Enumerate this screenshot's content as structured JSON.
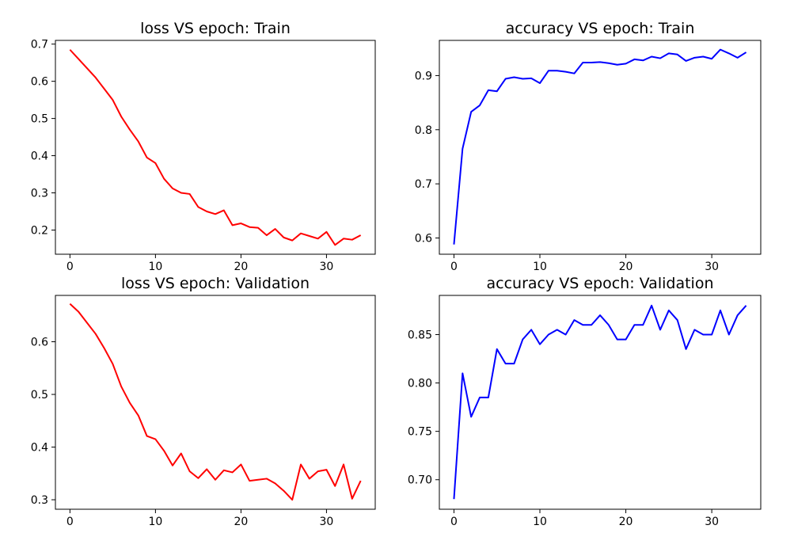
{
  "chart_data": [
    {
      "type": "line",
      "title": "loss VS epoch: Train",
      "xlabel": "",
      "ylabel": "",
      "xlim": [
        -1.7,
        35.7
      ],
      "ylim": [
        0.135,
        0.71
      ],
      "xticks": [
        0,
        10,
        20,
        30
      ],
      "yticks": [
        0.2,
        0.3,
        0.4,
        0.5,
        0.6,
        0.7
      ],
      "tick_decimals": 1,
      "grid": false,
      "series": [
        {
          "color": "#ff0000",
          "x": [
            0,
            1,
            2,
            3,
            4,
            5,
            6,
            7,
            8,
            9,
            10,
            11,
            12,
            13,
            14,
            15,
            16,
            17,
            18,
            19,
            20,
            21,
            22,
            23,
            24,
            25,
            26,
            27,
            28,
            29,
            30,
            31,
            32,
            33,
            34
          ],
          "values": [
            0.685,
            0.66,
            0.635,
            0.61,
            0.58,
            0.55,
            0.505,
            0.47,
            0.438,
            0.395,
            0.38,
            0.338,
            0.312,
            0.3,
            0.297,
            0.262,
            0.25,
            0.243,
            0.253,
            0.213,
            0.218,
            0.208,
            0.206,
            0.186,
            0.203,
            0.18,
            0.172,
            0.191,
            0.184,
            0.177,
            0.195,
            0.16,
            0.177,
            0.174,
            0.186
          ]
        }
      ]
    },
    {
      "type": "line",
      "title": "accuracy VS epoch: Train",
      "xlabel": "",
      "ylabel": "",
      "xlim": [
        -1.7,
        35.7
      ],
      "ylim": [
        0.57,
        0.965
      ],
      "xticks": [
        0,
        10,
        20,
        30
      ],
      "yticks": [
        0.6,
        0.7,
        0.8,
        0.9
      ],
      "tick_decimals": 1,
      "grid": false,
      "series": [
        {
          "color": "#0000ff",
          "x": [
            0,
            1,
            2,
            3,
            4,
            5,
            6,
            7,
            8,
            9,
            10,
            11,
            12,
            13,
            14,
            15,
            16,
            17,
            18,
            19,
            20,
            21,
            22,
            23,
            24,
            25,
            26,
            27,
            28,
            29,
            30,
            31,
            32,
            33,
            34
          ],
          "values": [
            0.588,
            0.765,
            0.833,
            0.845,
            0.873,
            0.871,
            0.894,
            0.897,
            0.894,
            0.895,
            0.886,
            0.909,
            0.909,
            0.907,
            0.904,
            0.924,
            0.924,
            0.925,
            0.923,
            0.92,
            0.922,
            0.93,
            0.928,
            0.935,
            0.932,
            0.941,
            0.939,
            0.927,
            0.933,
            0.935,
            0.931,
            0.948,
            0.941,
            0.933,
            0.943
          ]
        }
      ]
    },
    {
      "type": "line",
      "title": "loss VS epoch: Validation",
      "xlabel": "",
      "ylabel": "",
      "xlim": [
        -1.7,
        35.7
      ],
      "ylim": [
        0.282,
        0.688
      ],
      "xticks": [
        0,
        10,
        20,
        30
      ],
      "yticks": [
        0.3,
        0.4,
        0.5,
        0.6
      ],
      "tick_decimals": 1,
      "grid": false,
      "series": [
        {
          "color": "#ff0000",
          "x": [
            0,
            1,
            2,
            3,
            4,
            5,
            6,
            7,
            8,
            9,
            10,
            11,
            12,
            13,
            14,
            15,
            16,
            17,
            18,
            19,
            20,
            21,
            22,
            23,
            24,
            25,
            26,
            27,
            28,
            29,
            30,
            31,
            32,
            33,
            34
          ],
          "values": [
            0.672,
            0.657,
            0.636,
            0.615,
            0.588,
            0.558,
            0.515,
            0.484,
            0.46,
            0.421,
            0.415,
            0.393,
            0.365,
            0.388,
            0.354,
            0.341,
            0.358,
            0.338,
            0.356,
            0.352,
            0.367,
            0.336,
            0.338,
            0.34,
            0.331,
            0.317,
            0.3,
            0.367,
            0.34,
            0.354,
            0.357,
            0.326,
            0.367,
            0.302,
            0.336
          ]
        }
      ]
    },
    {
      "type": "line",
      "title": "accuracy VS epoch: Validation",
      "xlabel": "",
      "ylabel": "",
      "xlim": [
        -1.7,
        35.7
      ],
      "ylim": [
        0.6695,
        0.8905
      ],
      "xticks": [
        0,
        10,
        20,
        30
      ],
      "yticks": [
        0.7,
        0.75,
        0.8,
        0.85
      ],
      "tick_decimals": 2,
      "grid": false,
      "series": [
        {
          "color": "#0000ff",
          "x": [
            0,
            1,
            2,
            3,
            4,
            5,
            6,
            7,
            8,
            9,
            10,
            11,
            12,
            13,
            14,
            15,
            16,
            17,
            18,
            19,
            20,
            21,
            22,
            23,
            24,
            25,
            26,
            27,
            28,
            29,
            30,
            31,
            32,
            33,
            34
          ],
          "values": [
            0.68,
            0.81,
            0.765,
            0.785,
            0.785,
            0.835,
            0.82,
            0.82,
            0.845,
            0.855,
            0.84,
            0.85,
            0.855,
            0.85,
            0.865,
            0.86,
            0.86,
            0.87,
            0.86,
            0.845,
            0.845,
            0.86,
            0.86,
            0.88,
            0.855,
            0.875,
            0.865,
            0.835,
            0.855,
            0.85,
            0.85,
            0.875,
            0.85,
            0.87,
            0.88
          ]
        }
      ]
    }
  ]
}
